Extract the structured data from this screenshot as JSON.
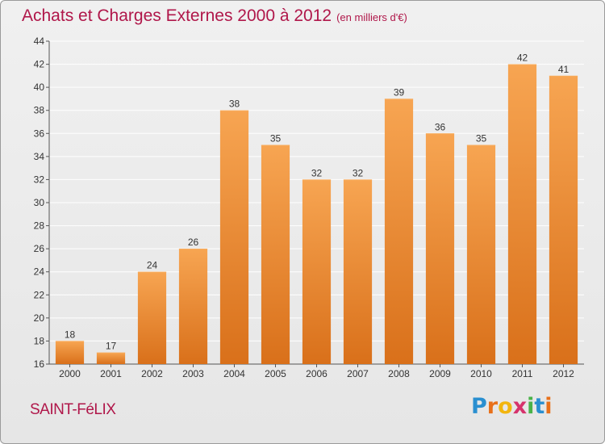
{
  "header": {
    "title": "Achats et Charges Externes 2000 à 2012",
    "subtitle": "(en milliers d'€)"
  },
  "footer": {
    "commune": "SAINT-FéLIX",
    "brand_letters": [
      "P",
      "r",
      "o",
      "x",
      "i",
      "t",
      "i"
    ],
    "brand_colors": [
      "#2a8fd0",
      "#e8701a",
      "#f2b50f",
      "#d6336c",
      "#49b248",
      "#2a8fd0",
      "#e8701a"
    ]
  },
  "colors": {
    "bar": "#f28c28",
    "bar_light": "#f7ac5c",
    "bar_dark": "#cf6a10",
    "grid": "#ffffff",
    "title": "#b0174a"
  },
  "chart_data": {
    "type": "bar",
    "title": "Achats et Charges Externes 2000 à 2012",
    "subtitle": "(en milliers d'€)",
    "categories": [
      "2000",
      "2001",
      "2002",
      "2003",
      "2004",
      "2005",
      "2006",
      "2007",
      "2008",
      "2009",
      "2010",
      "2011",
      "2012"
    ],
    "values": [
      18,
      17,
      24,
      26,
      38,
      35,
      32,
      32,
      39,
      36,
      35,
      42,
      41
    ],
    "ylim": [
      16,
      44
    ],
    "yticks": [
      16,
      18,
      20,
      22,
      24,
      26,
      28,
      30,
      32,
      34,
      36,
      38,
      40,
      42,
      44
    ],
    "xlabel": "",
    "ylabel": "",
    "grid": true,
    "data_labels": true
  }
}
